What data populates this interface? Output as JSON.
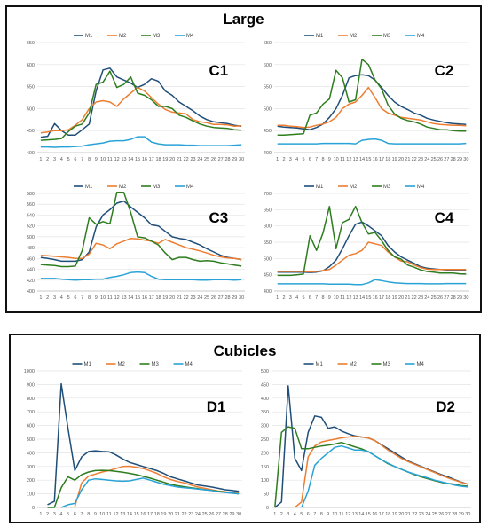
{
  "groups": [
    {
      "title": "Large"
    },
    {
      "title": "Cubicles"
    }
  ],
  "series_colors": {
    "M1": "#1f4e79",
    "M2": "#ed7d31",
    "M3": "#2e7d1f",
    "M4": "#29a3d6"
  },
  "chart_data": [
    {
      "type": "line",
      "group": "Large",
      "label": "C1",
      "x": [
        1,
        2,
        3,
        4,
        5,
        6,
        7,
        8,
        9,
        10,
        11,
        12,
        13,
        14,
        15,
        16,
        17,
        18,
        19,
        20,
        21,
        22,
        23,
        24,
        25,
        26,
        27,
        28,
        29,
        30
      ],
      "ylim": [
        400,
        650
      ],
      "yticks": [
        400,
        450,
        500,
        550,
        600,
        650
      ],
      "legend": [
        "M1",
        "M2",
        "M3",
        "M4"
      ],
      "legend_position": "top",
      "series": [
        {
          "name": "M1",
          "values": [
            435,
            437,
            466,
            450,
            440,
            440,
            452,
            465,
            540,
            588,
            592,
            572,
            565,
            558,
            548,
            555,
            568,
            562,
            540,
            530,
            515,
            505,
            495,
            483,
            475,
            470,
            468,
            466,
            462,
            460
          ]
        },
        {
          "name": "M2",
          "values": [
            445,
            447,
            450,
            450,
            452,
            462,
            475,
            500,
            515,
            518,
            515,
            505,
            522,
            535,
            548,
            540,
            525,
            510,
            498,
            492,
            490,
            488,
            475,
            470,
            468,
            464,
            464,
            463,
            460,
            461
          ]
        },
        {
          "name": "M3",
          "values": [
            428,
            429,
            430,
            432,
            448,
            460,
            465,
            490,
            555,
            560,
            585,
            548,
            555,
            572,
            535,
            530,
            520,
            505,
            505,
            500,
            485,
            480,
            472,
            465,
            460,
            457,
            456,
            455,
            452,
            451
          ]
        },
        {
          "name": "M4",
          "values": [
            413,
            413,
            412,
            413,
            413,
            414,
            415,
            418,
            420,
            422,
            426,
            427,
            427,
            430,
            436,
            436,
            424,
            420,
            418,
            418,
            418,
            417,
            417,
            416,
            416,
            416,
            416,
            416,
            417,
            418
          ]
        }
      ]
    },
    {
      "type": "line",
      "group": "Large",
      "label": "C2",
      "x": [
        1,
        2,
        3,
        4,
        5,
        6,
        7,
        8,
        9,
        10,
        11,
        12,
        13,
        14,
        15,
        16,
        17,
        18,
        19,
        20,
        21,
        22,
        23,
        24,
        25,
        26,
        27,
        28,
        29,
        30
      ],
      "ylim": [
        400,
        650
      ],
      "yticks": [
        400,
        450,
        500,
        550,
        600,
        650
      ],
      "legend": [
        "M1",
        "M2",
        "M3",
        "M4"
      ],
      "legend_position": "top",
      "series": [
        {
          "name": "M1",
          "values": [
            460,
            458,
            457,
            456,
            454,
            452,
            457,
            465,
            480,
            500,
            530,
            570,
            575,
            577,
            575,
            565,
            548,
            530,
            515,
            505,
            498,
            490,
            485,
            478,
            474,
            471,
            468,
            466,
            465,
            464
          ]
        },
        {
          "name": "M2",
          "values": [
            462,
            462,
            460,
            459,
            457,
            458,
            462,
            465,
            470,
            480,
            500,
            510,
            515,
            530,
            548,
            525,
            500,
            490,
            485,
            480,
            478,
            476,
            474,
            470,
            466,
            464,
            463,
            462,
            462,
            461
          ]
        },
        {
          "name": "M3",
          "values": [
            440,
            440,
            441,
            442,
            443,
            485,
            490,
            510,
            522,
            587,
            570,
            515,
            520,
            612,
            600,
            565,
            545,
            508,
            488,
            478,
            473,
            470,
            465,
            458,
            455,
            452,
            452,
            450,
            449,
            449
          ]
        },
        {
          "name": "M4",
          "values": [
            420,
            420,
            420,
            420,
            420,
            420,
            420,
            421,
            421,
            421,
            421,
            421,
            420,
            428,
            430,
            431,
            428,
            421,
            420,
            420,
            420,
            420,
            420,
            420,
            420,
            420,
            420,
            420,
            420,
            421
          ]
        }
      ]
    },
    {
      "type": "line",
      "group": "Large",
      "label": "C3",
      "x": [
        1,
        2,
        3,
        4,
        5,
        6,
        7,
        8,
        9,
        10,
        11,
        12,
        13,
        14,
        15,
        16,
        17,
        18,
        19,
        20,
        21,
        22,
        23,
        24,
        25,
        26,
        27,
        28,
        29,
        30
      ],
      "ylim": [
        400,
        580
      ],
      "yticks": [
        400,
        420,
        440,
        460,
        480,
        500,
        520,
        540,
        560,
        580
      ],
      "legend": [
        "M1",
        "M2",
        "M3",
        "M4"
      ],
      "legend_position": "top",
      "series": [
        {
          "name": "M1",
          "values": [
            462,
            460,
            458,
            455,
            455,
            455,
            458,
            472,
            518,
            540,
            550,
            562,
            566,
            555,
            545,
            535,
            522,
            520,
            510,
            500,
            497,
            495,
            490,
            485,
            478,
            472,
            466,
            462,
            460,
            458
          ]
        },
        {
          "name": "M2",
          "values": [
            466,
            465,
            464,
            463,
            462,
            460,
            460,
            468,
            488,
            485,
            478,
            487,
            492,
            497,
            496,
            494,
            492,
            488,
            495,
            490,
            485,
            480,
            477,
            474,
            470,
            466,
            463,
            461,
            460,
            458
          ]
        },
        {
          "name": "M3",
          "values": [
            449,
            448,
            447,
            445,
            445,
            446,
            475,
            535,
            523,
            528,
            524,
            582,
            582,
            545,
            500,
            498,
            492,
            485,
            470,
            458,
            462,
            462,
            458,
            455,
            456,
            455,
            452,
            450,
            448,
            446
          ]
        },
        {
          "name": "M4",
          "values": [
            423,
            423,
            423,
            422,
            421,
            420,
            421,
            421,
            422,
            422,
            425,
            427,
            430,
            434,
            435,
            434,
            427,
            422,
            421,
            421,
            421,
            421,
            421,
            420,
            420,
            421,
            421,
            421,
            420,
            421
          ]
        }
      ]
    },
    {
      "type": "line",
      "group": "Large",
      "label": "C4",
      "x": [
        1,
        2,
        3,
        4,
        5,
        6,
        7,
        8,
        9,
        10,
        11,
        12,
        13,
        14,
        15,
        16,
        17,
        18,
        19,
        20,
        21,
        22,
        23,
        24,
        25,
        26,
        27,
        28,
        29,
        30
      ],
      "ylim": [
        400,
        700
      ],
      "yticks": [
        400,
        450,
        500,
        550,
        600,
        650,
        700
      ],
      "legend": [
        "M1",
        "M2",
        "M3",
        "M4"
      ],
      "legend_position": "top",
      "series": [
        {
          "name": "M1",
          "values": [
            458,
            458,
            458,
            458,
            458,
            457,
            458,
            462,
            475,
            495,
            530,
            570,
            605,
            612,
            600,
            585,
            570,
            540,
            520,
            505,
            495,
            485,
            475,
            470,
            468,
            466,
            465,
            465,
            464,
            462
          ]
        },
        {
          "name": "M2",
          "values": [
            460,
            460,
            460,
            460,
            460,
            459,
            460,
            463,
            466,
            480,
            495,
            510,
            515,
            525,
            550,
            545,
            540,
            520,
            505,
            492,
            490,
            480,
            472,
            467,
            466,
            466,
            466,
            466,
            466,
            466
          ]
        },
        {
          "name": "M3",
          "values": [
            448,
            448,
            448,
            450,
            452,
            570,
            525,
            578,
            660,
            530,
            610,
            620,
            660,
            610,
            575,
            580,
            555,
            525,
            505,
            498,
            480,
            473,
            465,
            460,
            458,
            455,
            455,
            455,
            453,
            452
          ]
        },
        {
          "name": "M4",
          "values": [
            422,
            422,
            422,
            422,
            422,
            422,
            422,
            422,
            421,
            421,
            421,
            421,
            420,
            420,
            425,
            435,
            432,
            428,
            425,
            424,
            423,
            423,
            423,
            422,
            422,
            422,
            423,
            423,
            423,
            423
          ]
        }
      ]
    },
    {
      "type": "line",
      "group": "Cubicles",
      "label": "D1",
      "x": [
        1,
        2,
        3,
        4,
        5,
        6,
        7,
        8,
        9,
        10,
        11,
        12,
        13,
        14,
        15,
        16,
        17,
        18,
        19,
        20,
        21,
        22,
        23,
        24,
        25,
        26,
        27,
        28,
        29,
        30
      ],
      "ylim": [
        0,
        1000
      ],
      "yticks": [
        0,
        100,
        200,
        300,
        400,
        500,
        600,
        700,
        800,
        900,
        1000
      ],
      "legend": [
        "M1",
        "M2",
        "M3",
        "M4"
      ],
      "legend_position": "top",
      "series": [
        {
          "name": "M1",
          "values": [
            null,
            20,
            45,
            905,
            580,
            270,
            370,
            410,
            415,
            410,
            408,
            385,
            355,
            330,
            315,
            300,
            285,
            270,
            250,
            225,
            210,
            195,
            180,
            165,
            158,
            150,
            140,
            130,
            125,
            118
          ]
        },
        {
          "name": "M2",
          "values": [
            null,
            null,
            null,
            null,
            null,
            5,
            180,
            230,
            245,
            260,
            270,
            285,
            300,
            302,
            295,
            285,
            268,
            250,
            225,
            205,
            190,
            180,
            165,
            150,
            140,
            130,
            120,
            115,
            110,
            105
          ]
        },
        {
          "name": "M3",
          "values": [
            null,
            0,
            0,
            145,
            225,
            200,
            240,
            260,
            270,
            272,
            270,
            265,
            258,
            250,
            240,
            228,
            215,
            200,
            185,
            170,
            160,
            152,
            145,
            138,
            130,
            125,
            118,
            112,
            106,
            100
          ]
        },
        {
          "name": "M4",
          "values": [
            null,
            null,
            null,
            0,
            20,
            30,
            130,
            200,
            210,
            205,
            200,
            195,
            192,
            195,
            205,
            215,
            200,
            185,
            170,
            160,
            150,
            145,
            140,
            135,
            130,
            125,
            115,
            110,
            105,
            100
          ]
        }
      ]
    },
    {
      "type": "line",
      "group": "Cubicles",
      "label": "D2",
      "x": [
        1,
        2,
        3,
        4,
        5,
        6,
        7,
        8,
        9,
        10,
        11,
        12,
        13,
        14,
        15,
        16,
        17,
        18,
        19,
        20,
        21,
        22,
        23,
        24,
        25,
        26,
        27,
        28,
        29,
        30
      ],
      "ylim": [
        0,
        500
      ],
      "yticks": [
        0,
        50,
        100,
        150,
        200,
        250,
        300,
        350,
        400,
        450,
        500
      ],
      "legend": [
        "M1",
        "M2",
        "M3",
        "M4"
      ],
      "legend_position": "top",
      "series": [
        {
          "name": "M1",
          "values": [
            0,
            20,
            445,
            180,
            135,
            275,
            335,
            330,
            290,
            295,
            280,
            270,
            262,
            258,
            255,
            245,
            230,
            215,
            200,
            185,
            170,
            160,
            150,
            140,
            130,
            120,
            112,
            102,
            93,
            85
          ]
        },
        {
          "name": "M2",
          "values": [
            null,
            null,
            null,
            0,
            20,
            185,
            225,
            240,
            245,
            250,
            255,
            258,
            260,
            258,
            255,
            245,
            228,
            210,
            195,
            180,
            168,
            158,
            148,
            138,
            128,
            118,
            108,
            100,
            92,
            85
          ]
        },
        {
          "name": "M3",
          "values": [
            0,
            275,
            295,
            290,
            215,
            215,
            220,
            225,
            228,
            232,
            238,
            230,
            222,
            215,
            205,
            190,
            175,
            160,
            150,
            140,
            130,
            120,
            112,
            105,
            98,
            92,
            88,
            85,
            80,
            78
          ]
        },
        {
          "name": "M4",
          "values": [
            null,
            null,
            null,
            null,
            0,
            60,
            155,
            180,
            200,
            220,
            225,
            218,
            210,
            210,
            205,
            190,
            175,
            162,
            150,
            140,
            130,
            122,
            115,
            108,
            100,
            94,
            88,
            82,
            78,
            75
          ]
        }
      ]
    }
  ]
}
